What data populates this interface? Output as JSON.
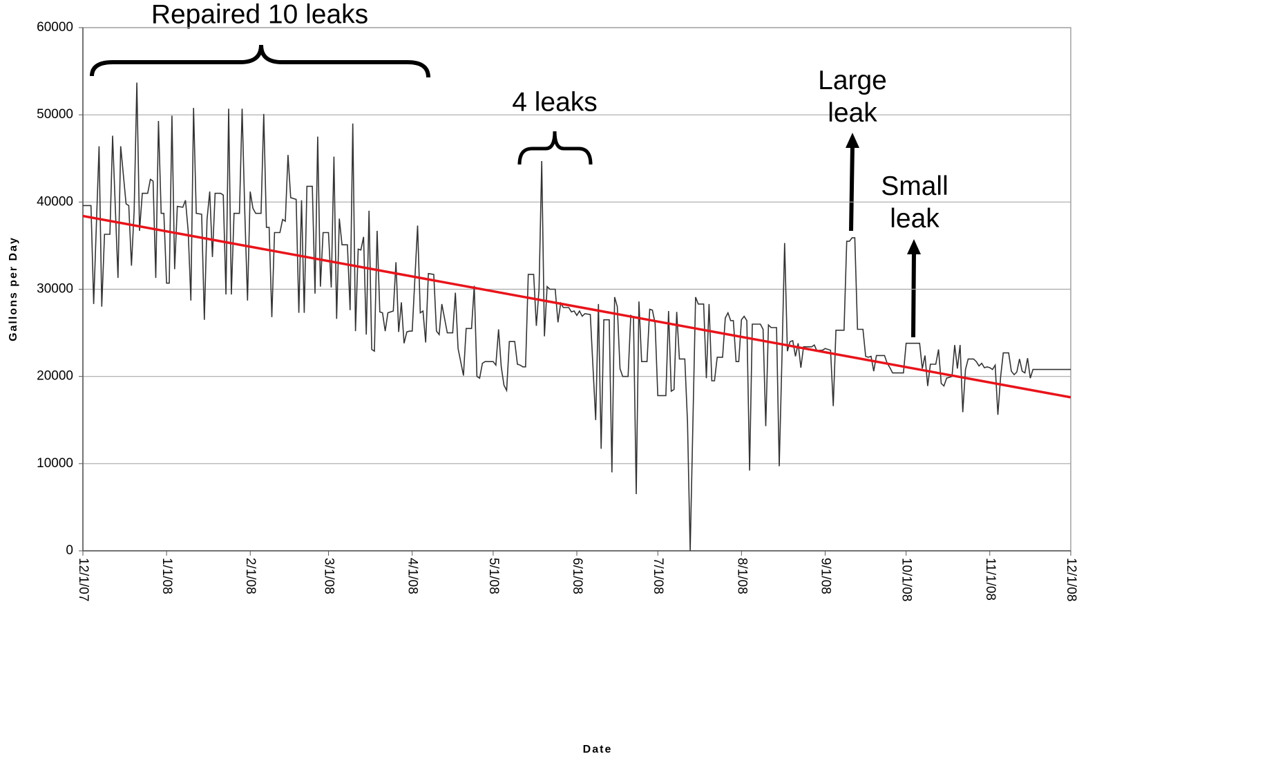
{
  "chart_data": {
    "type": "line",
    "xlabel": "Date",
    "ylabel": "Gallons per Day",
    "ylim": [
      0,
      60000
    ],
    "yticks": [
      0,
      10000,
      20000,
      30000,
      40000,
      50000,
      60000
    ],
    "xlim": [
      "12/1/07",
      "12/1/08"
    ],
    "xticks": [
      "12/1/07",
      "1/1/08",
      "2/1/08",
      "3/1/08",
      "4/1/08",
      "5/1/08",
      "6/1/08",
      "7/1/08",
      "8/1/08",
      "9/1/08",
      "10/1/08",
      "11/1/08",
      "12/1/08"
    ],
    "grid": true,
    "annotations": [
      {
        "text": "Repaired 10 leaks"
      },
      {
        "text": "4 leaks"
      },
      {
        "text": "Large leak"
      },
      {
        "text": "Small leak"
      }
    ],
    "series": [
      {
        "color": "#333333",
        "x": [
          "12/1/07",
          "12/4/07",
          "12/5/07",
          "12/7/07",
          "12/8/07",
          "12/9/07",
          "12/11/07",
          "12/12/07",
          "12/14/07",
          "12/15/07",
          "12/17/07",
          "12/18/07",
          "12/19/07",
          "12/20/07",
          "12/21/07",
          "12/22/07",
          "12/23/07",
          "12/25/07",
          "12/26/07",
          "12/27/07",
          "12/28/07",
          "12/29/07",
          "12/30/07",
          "12/31/07",
          "1/1/08",
          "1/2/08",
          "1/3/08",
          "1/4/08",
          "1/5/08",
          "1/7/08",
          "1/8/08",
          "1/9/08",
          "1/10/08",
          "1/11/08",
          "1/12/08",
          "1/14/08",
          "1/15/08",
          "1/16/08",
          "1/17/08",
          "1/18/08",
          "1/19/08",
          "1/21/08",
          "1/22/08",
          "1/23/08",
          "1/24/08",
          "1/25/08",
          "1/26/08",
          "1/28/08",
          "1/29/08",
          "1/30/08",
          "1/31/08",
          "2/1/08",
          "2/2/08",
          "2/3/08",
          "2/5/08",
          "2/6/08",
          "2/7/08",
          "2/8/08",
          "2/9/08",
          "2/10/08",
          "2/12/08",
          "2/13/08",
          "2/14/08",
          "2/15/08",
          "2/16/08",
          "2/18/08",
          "2/19/08",
          "2/20/08",
          "2/21/08",
          "2/22/08",
          "2/24/08",
          "2/25/08",
          "2/26/08",
          "2/27/08",
          "2/28/08",
          "2/29/08",
          "3/1/08",
          "3/2/08",
          "3/3/08",
          "3/4/08",
          "3/5/08",
          "3/6/08",
          "3/8/08",
          "3/9/08",
          "3/10/08",
          "3/11/08",
          "3/12/08",
          "3/13/08",
          "3/14/08",
          "3/15/08",
          "3/16/08",
          "3/17/08",
          "3/18/08",
          "3/19/08",
          "3/20/08",
          "3/21/08",
          "3/22/08",
          "3/23/08",
          "3/25/08",
          "3/26/08",
          "3/27/08",
          "3/28/08",
          "3/29/08",
          "3/30/08",
          "3/31/08",
          "4/1/08",
          "4/3/08",
          "4/4/08",
          "4/5/08",
          "4/6/08",
          "4/7/08",
          "4/9/08",
          "4/10/08",
          "4/11/08",
          "4/12/08",
          "4/14/08",
          "4/16/08",
          "4/17/08",
          "4/18/08",
          "4/20/08",
          "4/21/08",
          "4/23/08",
          "4/24/08",
          "4/25/08",
          "4/26/08",
          "4/27/08",
          "4/28/08",
          "4/30/08",
          "5/1/08",
          "5/2/08",
          "5/3/08",
          "5/4/08",
          "5/5/08",
          "5/6/08",
          "5/7/08",
          "5/9/08",
          "5/10/08",
          "5/11/08",
          "5/12/08",
          "5/13/08",
          "5/14/08",
          "5/16/08",
          "5/17/08",
          "5/18/08",
          "5/19/08",
          "5/20/08",
          "5/21/08",
          "5/22/08",
          "5/24/08",
          "5/25/08",
          "5/26/08",
          "5/27/08",
          "5/29/08",
          "5/30/08",
          "5/31/08",
          "6/1/08",
          "6/2/08",
          "6/3/08",
          "6/4/08",
          "6/6/08",
          "6/8/08",
          "6/9/08",
          "6/10/08",
          "6/11/08",
          "6/13/08",
          "6/14/08",
          "6/15/08",
          "6/16/08",
          "6/17/08",
          "6/18/08",
          "6/20/08",
          "6/21/08",
          "6/22/08",
          "6/23/08",
          "6/24/08",
          "6/25/08",
          "6/27/08",
          "6/28/08",
          "6/29/08",
          "6/30/08",
          "7/1/08",
          "7/4/08",
          "7/5/08",
          "7/6/08",
          "7/7/08",
          "7/8/08",
          "7/9/08",
          "7/11/08",
          "7/12/08",
          "7/13/08",
          "7/15/08",
          "7/16/08",
          "7/18/08",
          "7/19/08",
          "7/20/08",
          "7/21/08",
          "7/22/08",
          "7/23/08",
          "7/25/08",
          "7/26/08",
          "7/27/08",
          "7/28/08",
          "7/29/08",
          "7/30/08",
          "7/31/08",
          "8/1/08",
          "8/2/08",
          "8/3/08",
          "8/4/08",
          "8/5/08",
          "8/8/08",
          "8/9/08",
          "8/10/08",
          "8/11/08",
          "8/12/08",
          "8/14/08",
          "8/15/08",
          "8/16/08",
          "8/17/08",
          "8/18/08",
          "8/19/08",
          "8/20/08",
          "8/21/08",
          "8/22/08",
          "8/23/08",
          "8/24/08",
          "8/27/08",
          "8/28/08",
          "8/29/08",
          "8/30/08",
          "8/31/08",
          "9/1/08",
          "9/3/08",
          "9/4/08",
          "9/5/08",
          "9/8/08",
          "9/9/08",
          "9/10/08",
          "9/11/08",
          "9/12/08",
          "9/13/08",
          "9/15/08",
          "9/16/08",
          "9/17/08",
          "9/18/08",
          "9/19/08",
          "9/20/08",
          "9/23/08",
          "9/24/08",
          "9/25/08",
          "9/26/08",
          "9/29/08",
          "9/30/08",
          "10/1/08",
          "10/6/08",
          "10/7/08",
          "10/8/08",
          "10/9/08",
          "10/10/08",
          "10/12/08",
          "10/13/08",
          "10/14/08",
          "10/15/08",
          "10/16/08",
          "10/18/08",
          "10/19/08",
          "10/20/08",
          "10/21/08",
          "10/22/08",
          "10/23/08",
          "10/24/08",
          "10/26/08",
          "10/27/08",
          "10/28/08",
          "10/29/08",
          "10/30/08",
          "10/31/08",
          "11/1/08",
          "11/2/08",
          "11/3/08",
          "11/4/08",
          "11/5/08",
          "11/6/08",
          "11/8/08",
          "11/9/08",
          "11/10/08",
          "11/11/08",
          "11/12/08",
          "11/13/08",
          "11/14/08",
          "11/15/08",
          "11/16/08",
          "11/17/08",
          "11/30/08",
          "12/1/08"
        ],
        "values": [
          39600,
          39600,
          28300,
          46400,
          28000,
          36300,
          36300,
          47600,
          31300,
          46400,
          39800,
          39600,
          32700,
          39000,
          53700,
          36700,
          41000,
          41000,
          42600,
          42400,
          31300,
          49300,
          38700,
          38700,
          30700,
          30700,
          49900,
          32300,
          39500,
          39400,
          40200,
          36700,
          28700,
          50800,
          38700,
          38600,
          26500,
          38000,
          41200,
          33700,
          41000,
          41000,
          40800,
          29400,
          50700,
          29400,
          38700,
          38700,
          50700,
          38700,
          28700,
          41200,
          39300,
          38700,
          38700,
          50100,
          37100,
          37100,
          26800,
          36500,
          36500,
          38000,
          37800,
          45400,
          40500,
          40300,
          27300,
          40200,
          27300,
          41800,
          41800,
          29500,
          47500,
          30300,
          36500,
          36500,
          36500,
          30200,
          45200,
          26600,
          38100,
          35100,
          35100,
          27600,
          49000,
          25200,
          34600,
          34500,
          36000,
          24800,
          39000,
          23100,
          22900,
          36700,
          27400,
          27300,
          25200,
          27300,
          27500,
          33100,
          25100,
          28500,
          23800,
          25100,
          25200,
          25200,
          37300,
          27300,
          27500,
          23900,
          31800,
          31700,
          25200,
          24800,
          28300,
          25000,
          25000,
          29600,
          23200,
          20100,
          25500,
          25500,
          30400,
          20000,
          19800,
          21500,
          21700,
          21700,
          21700,
          21300,
          25400,
          21100,
          19000,
          18400,
          24000,
          24000,
          21400,
          21300,
          21100,
          21100,
          31700,
          31700,
          25800,
          30000,
          44700,
          24600,
          30300,
          30000,
          30000,
          26200,
          28400,
          27900,
          27900,
          27400,
          27500,
          27000,
          27500,
          26900,
          27200,
          27100,
          15000,
          28300,
          11700,
          26500,
          26500,
          9000,
          29100,
          28000,
          20900,
          20000,
          20000,
          27000,
          26800,
          6500,
          28600,
          21700,
          21700,
          27700,
          27600,
          26100,
          17800,
          17800,
          27500,
          18300,
          18500,
          27400,
          22000,
          22000,
          14800,
          0,
          29100,
          28300,
          28300,
          19800,
          28300,
          19500,
          19500,
          22200,
          22200,
          26700,
          27300,
          26400,
          26400,
          21700,
          21700,
          26500,
          26900,
          26400,
          9200,
          26000,
          26000,
          25400,
          14300,
          25900,
          25600,
          25600,
          9700,
          22000,
          35300,
          22900,
          24000,
          24100,
          22300,
          23800,
          21000,
          23400,
          23400,
          23600,
          22900,
          23000,
          23000,
          23200,
          23000,
          16600,
          25300,
          25300,
          35500,
          35500,
          35900,
          35900,
          25400,
          25400,
          22300,
          22200,
          22300,
          20600,
          22400,
          22400,
          21500,
          21000,
          20400,
          20400,
          20400,
          23800,
          23800,
          20900,
          22400,
          18900,
          21400,
          21400,
          23100,
          19200,
          18900,
          19800,
          20000,
          23600,
          20900,
          23600,
          15900,
          20800,
          22000,
          22000,
          21700,
          21200,
          21500,
          21000,
          21100,
          21000,
          20800,
          21300,
          15600,
          19900,
          22700,
          22700,
          20600,
          20200,
          20500,
          22000,
          20600,
          20400,
          22100,
          19800,
          20800,
          20800,
          20800
        ]
      },
      {
        "color": "#e8141b",
        "x": [
          "12/1/07",
          "12/1/08"
        ],
        "values": [
          38400,
          17600
        ]
      }
    ]
  }
}
